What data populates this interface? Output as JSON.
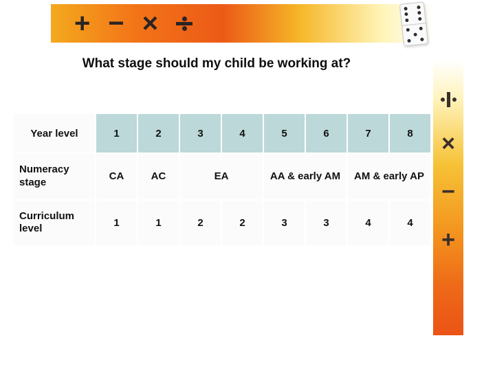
{
  "heading": "What stage should my child be working at?",
  "banner": {
    "gradient_colors": [
      "#f3a91e",
      "#f37417",
      "#eb5a17",
      "#f6b628",
      "#fff3b4",
      "#ffffff"
    ],
    "symbols": [
      "+",
      "−",
      "×",
      "÷"
    ],
    "symbol_color": "#2a2423"
  },
  "right_banner": {
    "gradient_colors": [
      "#ffffff",
      "#fff3bb",
      "#f6c236",
      "#f3951e",
      "#ee6a18",
      "#eb5316"
    ],
    "symbols": [
      "÷",
      "×",
      "−",
      "+"
    ],
    "symbol_color": "#3a2f2b"
  },
  "domino": {
    "top_pips": 6,
    "bottom_pips": 5
  },
  "table": {
    "type": "table",
    "header_bg": "#bcd8d8",
    "body_bg": "#fcfbfb",
    "border_color": "#ffffff",
    "column_widths": {
      "label": 120,
      "data": 61
    },
    "fontsize": 15,
    "header_label": "Year level",
    "year_levels": [
      "1",
      "2",
      "3",
      "4",
      "5",
      "6",
      "7",
      "8"
    ],
    "rows": [
      {
        "label": "Numeracy stage",
        "cells": [
          {
            "text": "CA",
            "span": 1
          },
          {
            "text": "AC",
            "span": 1
          },
          {
            "text": "EA",
            "span": 2
          },
          {
            "text": "AA & early AM",
            "span": 2
          },
          {
            "text": "AM & early AP",
            "span": 2
          }
        ]
      },
      {
        "label": "Curriculum level",
        "cells": [
          {
            "text": "1",
            "span": 1
          },
          {
            "text": "1",
            "span": 1
          },
          {
            "text": "2",
            "span": 1
          },
          {
            "text": "2",
            "span": 1
          },
          {
            "text": "3",
            "span": 1
          },
          {
            "text": "3",
            "span": 1
          },
          {
            "text": "4",
            "span": 1
          },
          {
            "text": "4",
            "span": 1
          }
        ]
      }
    ]
  }
}
